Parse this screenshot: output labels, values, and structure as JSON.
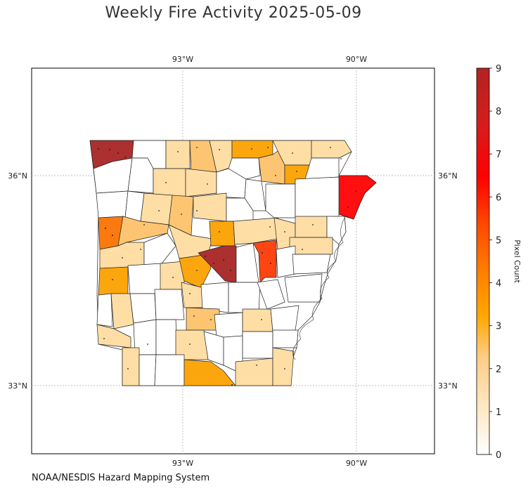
{
  "title": "Weekly Fire Activity 2025-05-09",
  "source": "NOAA/NESDIS Hazard Mapping System",
  "map": {
    "region": "Arkansas counties",
    "lon_ticks": [
      "93°W",
      "90°W"
    ],
    "lat_ticks": [
      "36°N",
      "33°N"
    ],
    "grid": true,
    "legend_placement": "right colorbar"
  },
  "colorbar": {
    "label": "Pixel Count",
    "ticks": [
      "0",
      "1",
      "2",
      "3",
      "4",
      "5",
      "6",
      "7",
      "8",
      "9"
    ],
    "range": [
      0,
      9
    ],
    "colors": [
      "#ffffff",
      "#ffe3b5",
      "#ffc37a",
      "#ffa500",
      "#ff7f00",
      "#ff4a00",
      "#ff0000",
      "#d31c1c",
      "#b22222"
    ]
  },
  "colors": {
    "c0": "#ffffff",
    "c1": "#ffdea6",
    "c2": "#fdc571",
    "c3": "#fca60e",
    "c4": "#fb7a10",
    "c5": "#fd4514",
    "c6": "#ff0f10",
    "c9": "#ac3030"
  }
}
